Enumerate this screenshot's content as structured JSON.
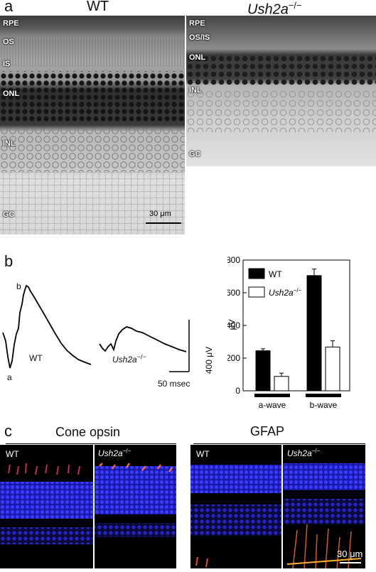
{
  "panel_a": {
    "letter": "a",
    "wt_title": "WT",
    "ko_title": "Ush2a",
    "ko_sup": "−/−",
    "wt_layers": [
      "RPE",
      "OS",
      "IS",
      "ONL",
      "INL",
      "GC"
    ],
    "ko_layers": [
      "RPE",
      "OS/IS",
      "ONL",
      "INL",
      "GC"
    ],
    "scale_bar": "30 μm"
  },
  "panel_b": {
    "letter": "b",
    "trace_wt_label": "WT",
    "trace_ko_label": "Ush2a",
    "trace_ko_sup": "−/−",
    "trace_a": "a",
    "trace_b": "b",
    "scale_v": "400 μV",
    "scale_t": "50 msec"
  },
  "panel_c": {
    "letter": "c",
    "cone_title": "Cone opsin",
    "gfap_title": "GFAP",
    "wt": "WT",
    "ko": "Ush2a",
    "ko_sup": "−/−",
    "scale_bar": "30 μm"
  },
  "chart_data": {
    "type": "bar",
    "categories": [
      "a-wave",
      "b-wave"
    ],
    "series": [
      {
        "name": "WT",
        "values": [
          245,
          705
        ],
        "errors": [
          12,
          40
        ],
        "color": "#000000"
      },
      {
        "name": "Ush2a−/−",
        "values": [
          88,
          268
        ],
        "errors": [
          20,
          38
        ],
        "color": "#ffffff"
      }
    ],
    "ylabel": "μV",
    "ylim": [
      0,
      800
    ],
    "yticks": [
      0,
      200,
      400,
      600,
      800
    ],
    "legend": "top-left",
    "legend_labels": [
      "WT",
      "Ush2a"
    ],
    "legend_sup": "−/−"
  }
}
